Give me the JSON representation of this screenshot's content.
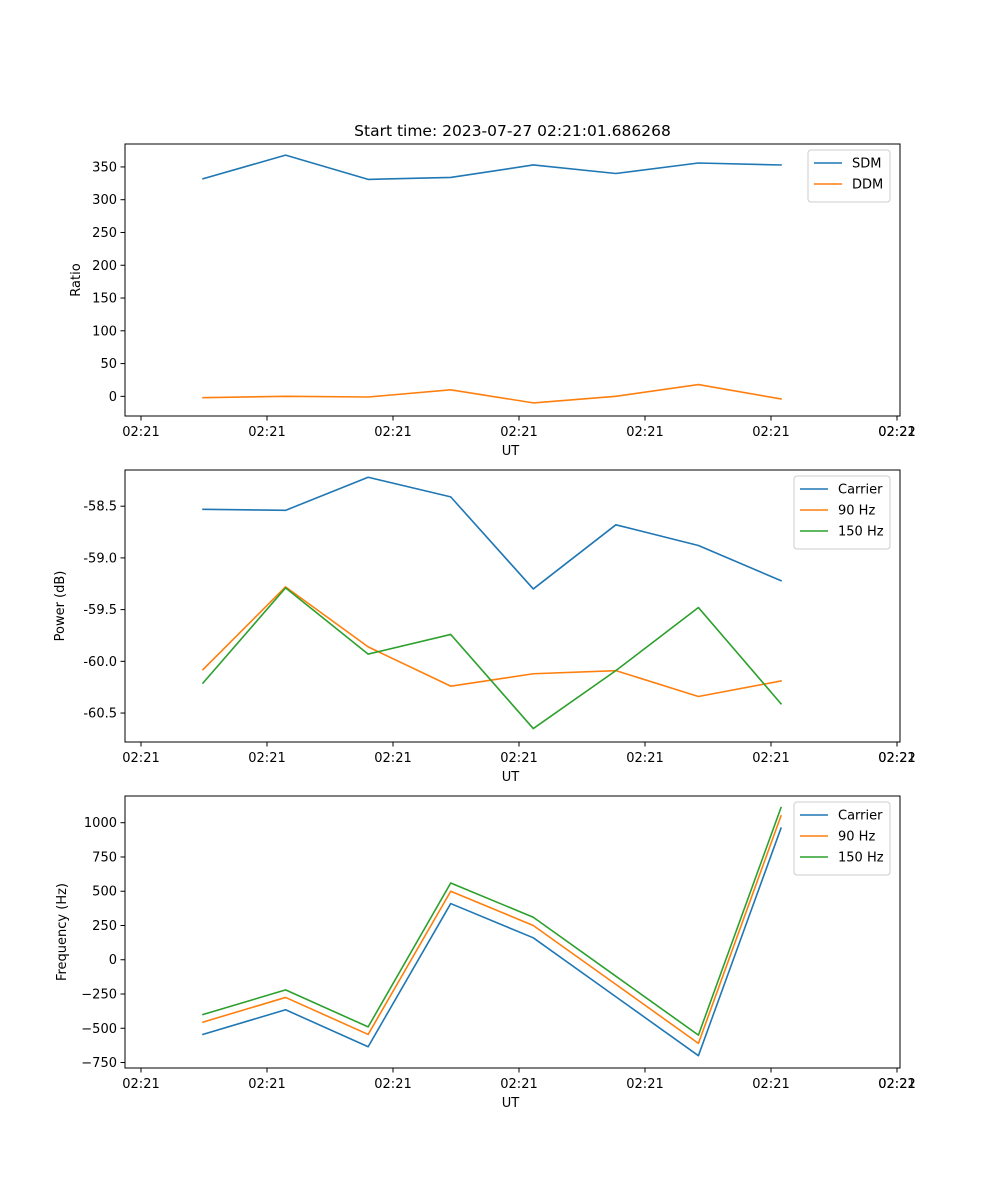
{
  "chart_data": [
    {
      "type": "line",
      "title": "Start time: 2023-07-27 02:21:01.686268",
      "xlabel": "UT",
      "ylabel": "Ratio",
      "x_ticks": [
        "02:21",
        "02:21",
        "02:21",
        "02:21",
        "02:21",
        "02:21",
        "02:21"
      ],
      "x_ticks_right": "02:22",
      "xlim": [
        -0.75,
        8.75
      ],
      "ylim": [
        -30,
        385
      ],
      "y_ticks": [
        0,
        50,
        100,
        150,
        200,
        250,
        300,
        350
      ],
      "x": [
        0.2,
        1.2,
        2.2,
        3.2,
        4.2,
        5.2,
        6.2,
        7.2
      ],
      "series": [
        {
          "name": "SDM",
          "color": "#1f77b4",
          "values": [
            332,
            368,
            331,
            334,
            353,
            340,
            356,
            353
          ]
        },
        {
          "name": "DDM",
          "color": "#ff7f0e",
          "values": [
            -2,
            0,
            -1,
            10,
            -10,
            0,
            18,
            -4
          ]
        }
      ],
      "legend": "top-right"
    },
    {
      "type": "line",
      "title": "",
      "xlabel": "UT",
      "ylabel": "Power (dB)",
      "x_ticks": [
        "02:21",
        "02:21",
        "02:21",
        "02:21",
        "02:21",
        "02:21",
        "02:21"
      ],
      "x_ticks_right": "02:22",
      "xlim": [
        -0.75,
        8.75
      ],
      "ylim": [
        -60.78,
        -58.15
      ],
      "y_ticks": [
        "-58.5",
        "-59.0",
        "-59.5",
        "-60.0",
        "-60.5"
      ],
      "y_tick_values": [
        -58.5,
        -59.0,
        -59.5,
        -60.0,
        -60.5
      ],
      "x": [
        0.2,
        1.2,
        2.2,
        3.2,
        4.2,
        5.2,
        6.2,
        7.2
      ],
      "series": [
        {
          "name": "Carrier",
          "color": "#1f77b4",
          "values": [
            -58.53,
            -58.54,
            -58.22,
            -58.41,
            -59.3,
            -58.68,
            -58.88,
            -59.22
          ]
        },
        {
          "name": "90 Hz",
          "color": "#ff7f0e",
          "values": [
            -60.08,
            -59.28,
            -59.86,
            -60.24,
            -60.12,
            -60.09,
            -60.34,
            -60.19
          ]
        },
        {
          "name": "150 Hz",
          "color": "#2ca02c",
          "values": [
            -60.21,
            -59.29,
            -59.93,
            -59.74,
            -60.65,
            -60.09,
            -59.48,
            -60.41
          ]
        }
      ],
      "legend": "top-right"
    },
    {
      "type": "line",
      "title": "",
      "xlabel": "UT",
      "ylabel": "Frequency (Hz)",
      "x_ticks": [
        "02:21",
        "02:21",
        "02:21",
        "02:21",
        "02:21",
        "02:21",
        "02:21"
      ],
      "x_ticks_right": "02:22",
      "xlim": [
        -0.75,
        8.75
      ],
      "ylim": [
        -790,
        1195
      ],
      "y_ticks": [
        "−750",
        "−500",
        "−250",
        "0",
        "250",
        "500",
        "750",
        "1000"
      ],
      "y_tick_values": [
        -750,
        -500,
        -250,
        0,
        250,
        500,
        750,
        1000
      ],
      "x": [
        0.2,
        1.2,
        2.2,
        3.2,
        4.2,
        5.2,
        6.2,
        7.2
      ],
      "series": [
        {
          "name": "Carrier",
          "color": "#1f77b4",
          "values": [
            -545,
            -365,
            -635,
            410,
            160,
            -270,
            -700,
            960
          ]
        },
        {
          "name": "90 Hz",
          "color": "#ff7f0e",
          "values": [
            -455,
            -275,
            -545,
            500,
            250,
            -180,
            -610,
            1050
          ]
        },
        {
          "name": "150 Hz",
          "color": "#2ca02c",
          "values": [
            -400,
            -220,
            -490,
            560,
            310,
            -120,
            -550,
            1110
          ]
        }
      ],
      "legend": "top-right"
    }
  ]
}
